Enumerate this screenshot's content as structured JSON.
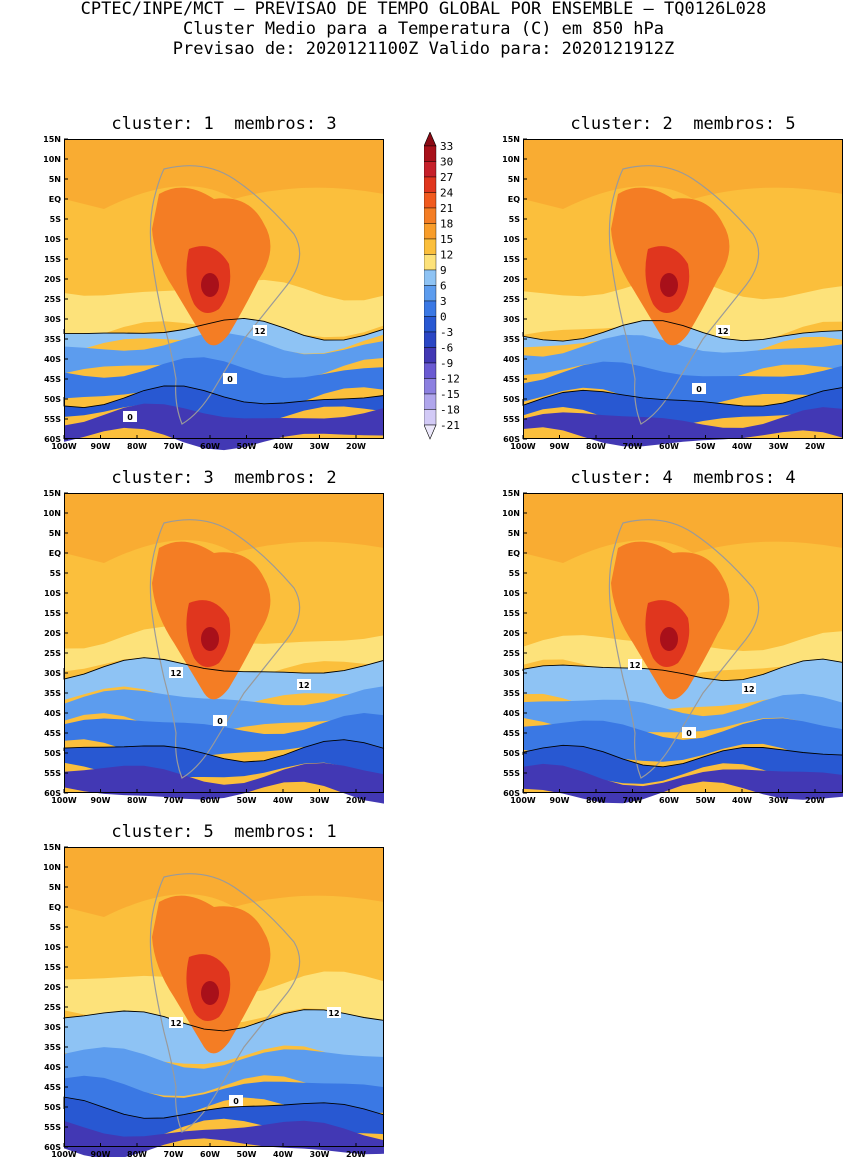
{
  "header": {
    "line1": "CPTEC/INPE/MCT – PREVISAO DE TEMPO GLOBAL POR ENSEMBLE – TQ0126L028",
    "line2": "Cluster Medio para a Temperatura (C) em 850 hPa",
    "line3": "Previsao de: 2020121100Z   Valido para: 2020121912Z"
  },
  "axes": {
    "lat_labels": [
      "15N",
      "10N",
      "5N",
      "EQ",
      "5S",
      "10S",
      "15S",
      "20S",
      "25S",
      "30S",
      "35S",
      "40S",
      "45S",
      "50S",
      "55S",
      "60S"
    ],
    "lon_labels": [
      "100W",
      "90W",
      "80W",
      "70W",
      "60W",
      "50W",
      "40W",
      "30W",
      "20W"
    ]
  },
  "colorbar": {
    "labels": [
      "33",
      "30",
      "27",
      "24",
      "21",
      "18",
      "15",
      "12",
      "9",
      "6",
      "3",
      "0",
      "-3",
      "-6",
      "-9",
      "-12",
      "-15",
      "-18",
      "-21"
    ],
    "colors": [
      "#a8101a",
      "#c6202a",
      "#e0361e",
      "#f05a1e",
      "#f47d24",
      "#f89d2a",
      "#fbbf3c",
      "#fde27a",
      "#8ec3f4",
      "#5c9cee",
      "#3a78e4",
      "#2858d2",
      "#2a46c4",
      "#4238b4",
      "#6a5ad2",
      "#8c80e0",
      "#b0a6ec",
      "#d2caf6"
    ]
  },
  "panels": [
    {
      "title": "cluster: 1  membros: 3",
      "contour_labels": [
        "12",
        "0",
        "0"
      ]
    },
    {
      "title": "cluster: 2  membros: 5",
      "contour_labels": [
        "12",
        "0"
      ]
    },
    {
      "title": "cluster: 3  membros: 2",
      "contour_labels": [
        "12",
        "12",
        "0"
      ]
    },
    {
      "title": "cluster: 4  membros: 4",
      "contour_labels": [
        "12",
        "12",
        "0"
      ]
    },
    {
      "title": "cluster: 5  membros: 1",
      "contour_labels": [
        "12",
        "12",
        "0"
      ]
    }
  ]
}
